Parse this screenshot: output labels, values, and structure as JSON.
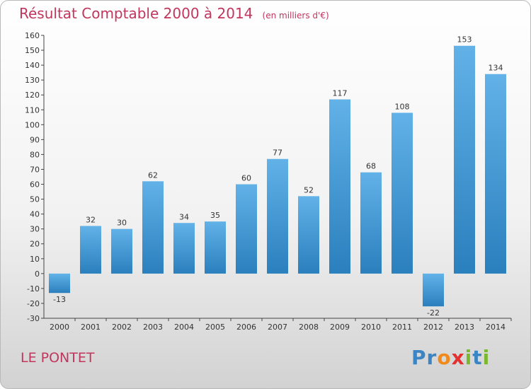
{
  "header": {
    "title": "Résultat Comptable 2000 à 2014",
    "subtitle": "(en milliers d'€)"
  },
  "footer": {
    "town": "LE PONTET",
    "logo_letters": [
      "P",
      "r",
      "o",
      "x",
      "i",
      "t",
      "i"
    ]
  },
  "colors": {
    "title": "#c0365d",
    "bar_light": "#62b2e8",
    "bar_dark": "#2a7fbd",
    "logo": [
      "#3b85c4",
      "#3b85c4",
      "#f08a1c",
      "#e53030",
      "#7ab82f",
      "#3b85c4",
      "#7ab82f"
    ]
  },
  "chart_data": {
    "type": "bar",
    "categories": [
      "2000",
      "2001",
      "2002",
      "2003",
      "2004",
      "2005",
      "2006",
      "2007",
      "2008",
      "2009",
      "2010",
      "2011",
      "2012",
      "2013",
      "2014"
    ],
    "values": [
      -13,
      32,
      30,
      62,
      34,
      35,
      60,
      77,
      52,
      117,
      68,
      108,
      -22,
      153,
      134
    ],
    "ylim": [
      -30,
      160
    ],
    "yticks": [
      -30,
      -20,
      -10,
      0,
      10,
      20,
      30,
      40,
      50,
      60,
      70,
      80,
      90,
      100,
      110,
      120,
      130,
      140,
      150,
      160
    ],
    "grid": false,
    "legend": "none"
  }
}
